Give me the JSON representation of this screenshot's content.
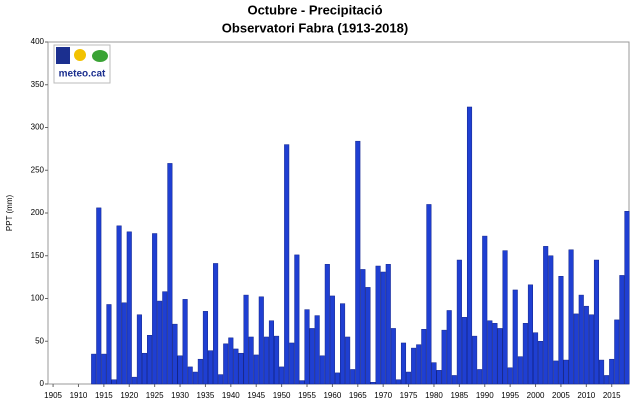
{
  "chart_data": {
    "type": "bar",
    "title": "Octubre - Precipitació",
    "subtitle": "Observatori Fabra (1913-2018)",
    "y_label": "PPT (mm)",
    "logo_text": "meteo.cat",
    "color": "#1f3fd2",
    "x": [
      1913,
      1914,
      1915,
      1916,
      1917,
      1918,
      1919,
      1920,
      1921,
      1922,
      1923,
      1924,
      1925,
      1926,
      1927,
      1928,
      1929,
      1930,
      1931,
      1932,
      1933,
      1934,
      1935,
      1936,
      1937,
      1938,
      1939,
      1940,
      1941,
      1942,
      1943,
      1944,
      1945,
      1946,
      1947,
      1948,
      1949,
      1950,
      1951,
      1952,
      1953,
      1954,
      1955,
      1956,
      1957,
      1958,
      1959,
      1960,
      1961,
      1962,
      1963,
      1964,
      1965,
      1966,
      1967,
      1968,
      1969,
      1970,
      1971,
      1972,
      1973,
      1974,
      1975,
      1976,
      1977,
      1978,
      1979,
      1980,
      1981,
      1982,
      1983,
      1984,
      1985,
      1986,
      1987,
      1988,
      1989,
      1990,
      1991,
      1992,
      1993,
      1994,
      1995,
      1996,
      1997,
      1998,
      1999,
      2000,
      2001,
      2002,
      2003,
      2004,
      2005,
      2006,
      2007,
      2008,
      2009,
      2010,
      2011,
      2012,
      2013,
      2014,
      2015,
      2016,
      2017,
      2018
    ],
    "values": [
      35,
      206,
      35,
      93,
      5,
      185,
      95,
      178,
      8,
      81,
      36,
      57,
      176,
      97,
      108,
      258,
      70,
      33,
      99,
      20,
      14,
      29,
      85,
      39,
      141,
      11,
      47,
      54,
      41,
      36,
      104,
      55,
      34,
      102,
      55,
      74,
      56,
      20,
      280,
      48,
      151,
      4,
      87,
      65,
      80,
      33,
      140,
      103,
      13,
      94,
      55,
      17,
      284,
      134,
      113,
      2,
      138,
      131,
      140,
      65,
      5,
      48,
      14,
      42,
      46,
      64,
      210,
      25,
      16,
      63,
      86,
      10,
      145,
      78,
      324,
      56,
      17,
      173,
      74,
      71,
      65,
      156,
      19,
      110,
      32,
      71,
      116,
      60,
      50,
      161,
      150,
      27,
      126,
      28,
      157,
      82,
      104,
      91,
      81,
      145,
      28,
      10,
      29,
      75,
      127,
      202
    ],
    "xlim": [
      1904,
      2018.6
    ],
    "xticks": [
      1905,
      1910,
      1915,
      1920,
      1925,
      1930,
      1935,
      1940,
      1945,
      1950,
      1955,
      1960,
      1965,
      1970,
      1975,
      1980,
      1985,
      1990,
      1995,
      2000,
      2005,
      2010,
      2015
    ],
    "ylim": [
      0,
      400
    ],
    "yticks": [
      0,
      50,
      100,
      150,
      200,
      250,
      300,
      350,
      400
    ]
  }
}
